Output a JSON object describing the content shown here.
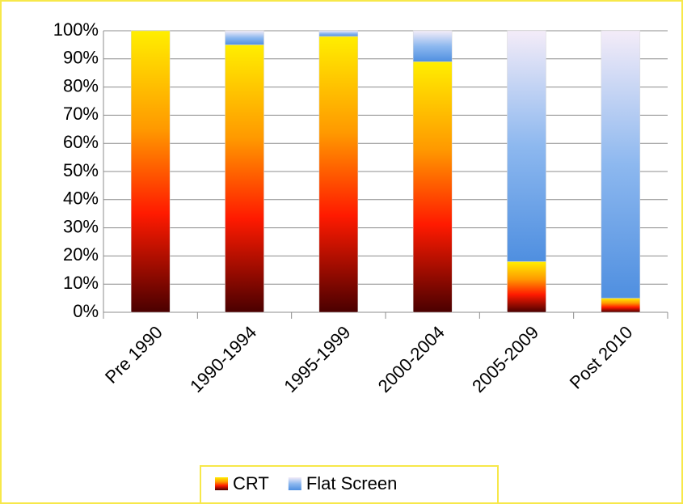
{
  "chart_data": {
    "type": "stacked_bar",
    "categories": [
      "Pre 1990",
      "1990-1994",
      "1995-1999",
      "2000-2004",
      "2005-2009",
      "Post 2010"
    ],
    "series": [
      {
        "name": "CRT",
        "color": "#ff9900",
        "values": [
          100,
          95,
          98,
          89,
          18,
          5
        ]
      },
      {
        "name": "Flat Screen",
        "color": "#8db8ef",
        "values": [
          0,
          5,
          2,
          11,
          82,
          95
        ]
      }
    ],
    "ylim": [
      0,
      100
    ],
    "yticks": [
      {
        "value": 0,
        "label": "0%"
      },
      {
        "value": 10,
        "label": "10%"
      },
      {
        "value": 20,
        "label": "20%"
      },
      {
        "value": 30,
        "label": "30%"
      },
      {
        "value": 40,
        "label": "40%"
      },
      {
        "value": 50,
        "label": "50%"
      },
      {
        "value": 60,
        "label": "60%"
      },
      {
        "value": 70,
        "label": "70%"
      },
      {
        "value": 80,
        "label": "80%"
      },
      {
        "value": 90,
        "label": "90%"
      },
      {
        "value": 100,
        "label": "100%"
      }
    ],
    "grid": true,
    "legend": "bottom"
  }
}
